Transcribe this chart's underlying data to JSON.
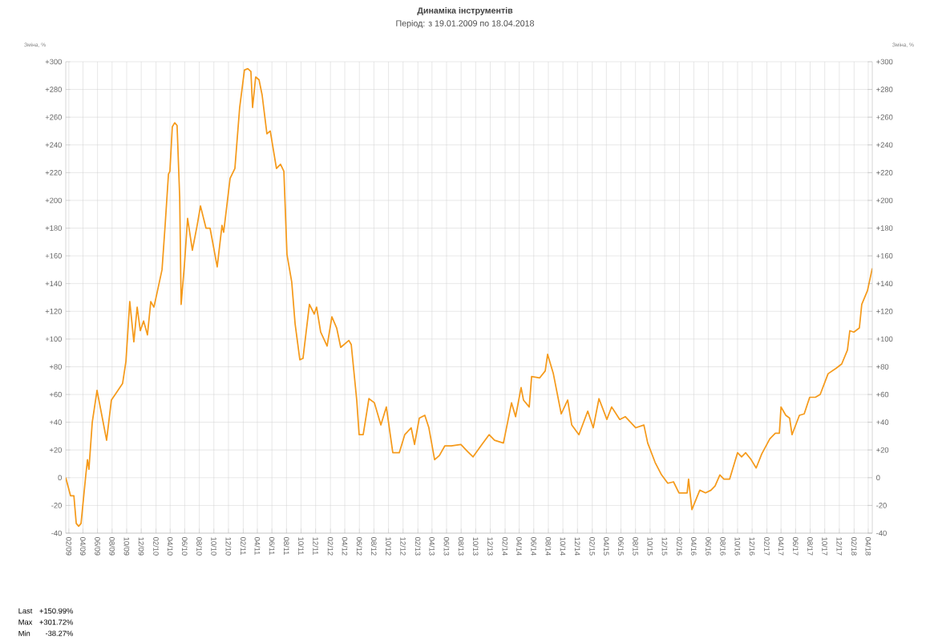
{
  "chart_data": {
    "type": "line",
    "title": "Динаміка інструментів",
    "subtitle": "Період: з 19.01.2009 по 18.04.2018",
    "ylabel": "Зміна, %",
    "y2label": "Зміна, %",
    "annotations": [
      "Last",
      "+150.99%",
      "Max",
      "+301.72%",
      "Min",
      "-38.27%"
    ],
    "x": [
      "2009-01-19",
      "2009-02-08",
      "2009-02-22",
      "2009-03-04",
      "2009-03-14",
      "2009-03-24",
      "2009-04-13",
      "2009-04-20",
      "2009-04-26",
      "2009-05-10",
      "2009-05-30",
      "2009-06-19",
      "2009-07-09",
      "2009-07-29",
      "2009-08-18",
      "2009-09-14",
      "2009-09-28",
      "2009-10-14",
      "2009-10-31",
      "2009-11-14",
      "2009-11-27",
      "2009-12-11",
      "2009-12-27",
      "2010-01-10",
      "2010-01-23",
      "2010-02-06",
      "2010-02-26",
      "2010-03-11",
      "2010-03-25",
      "2010-03-31",
      "2010-04-10",
      "2010-04-20",
      "2010-04-30",
      "2010-05-11",
      "2010-05-17",
      "2010-05-31",
      "2010-06-13",
      "2010-07-03",
      "2010-07-23",
      "2010-08-06",
      "2010-08-29",
      "2010-09-15",
      "2010-10-15",
      "2010-11-04",
      "2010-11-11",
      "2010-12-08",
      "2010-12-28",
      "2011-01-17",
      "2011-02-06",
      "2011-02-20",
      "2011-03-05",
      "2011-03-12",
      "2011-03-25",
      "2011-04-08",
      "2011-04-21",
      "2011-05-11",
      "2011-05-25",
      "2011-06-20",
      "2011-07-07",
      "2011-07-21",
      "2011-08-03",
      "2011-08-23",
      "2011-09-06",
      "2011-09-26",
      "2011-10-09",
      "2011-11-05",
      "2011-11-25",
      "2011-12-05",
      "2011-12-22",
      "2012-01-18",
      "2012-02-07",
      "2012-02-27",
      "2012-03-15",
      "2012-04-18",
      "2012-04-28",
      "2012-05-21",
      "2012-05-31",
      "2012-06-17",
      "2012-07-11",
      "2012-08-03",
      "2012-08-30",
      "2012-09-22",
      "2012-10-19",
      "2012-11-15",
      "2012-12-08",
      "2013-01-04",
      "2013-01-18",
      "2013-02-07",
      "2013-03-02",
      "2013-03-19",
      "2013-04-12",
      "2013-05-02",
      "2013-05-25",
      "2013-06-21",
      "2013-07-31",
      "2013-08-27",
      "2013-09-20",
      "2013-10-23",
      "2013-11-26",
      "2013-12-19",
      "2014-01-25",
      "2014-02-28",
      "2014-03-17",
      "2014-04-09",
      "2014-04-19",
      "2014-05-13",
      "2014-05-23",
      "2014-06-26",
      "2014-07-19",
      "2014-07-29",
      "2014-08-22",
      "2014-09-24",
      "2014-10-21",
      "2014-11-07",
      "2014-12-07",
      "2015-01-13",
      "2015-02-05",
      "2015-03-01",
      "2015-04-03",
      "2015-04-23",
      "2015-05-27",
      "2015-06-19",
      "2015-08-02",
      "2015-09-05",
      "2015-09-21",
      "2015-10-22",
      "2015-11-18",
      "2015-12-14",
      "2016-01-07",
      "2016-01-30",
      "2016-03-04",
      "2016-03-10",
      "2016-03-24",
      "2016-04-26",
      "2016-05-20",
      "2016-06-12",
      "2016-06-29",
      "2016-07-19",
      "2016-08-05",
      "2016-08-29",
      "2016-10-01",
      "2016-10-18",
      "2016-11-04",
      "2016-11-27",
      "2016-12-18",
      "2017-01-10",
      "2017-02-13",
      "2017-03-08",
      "2017-03-25",
      "2017-04-01",
      "2017-04-21",
      "2017-05-07",
      "2017-05-17",
      "2017-06-17",
      "2017-07-07",
      "2017-07-30",
      "2017-08-23",
      "2017-09-12",
      "2017-10-15",
      "2017-11-18",
      "2017-12-11",
      "2018-01-04",
      "2018-01-14",
      "2018-01-31",
      "2018-02-23",
      "2018-03-05",
      "2018-03-29",
      "2018-04-18"
    ],
    "series": [
      {
        "color": "#f59a1b",
        "values": [
          0,
          -13,
          -13,
          -33,
          -35,
          -33,
          2,
          13,
          6,
          40,
          63,
          45,
          27,
          56,
          61,
          68,
          84,
          127,
          98,
          123,
          106,
          113,
          103,
          127,
          123,
          134,
          150,
          182,
          219,
          221,
          253,
          256,
          254,
          202,
          125,
          154,
          187,
          164,
          182,
          196,
          180,
          180,
          152,
          182,
          177,
          216,
          223,
          267,
          294,
          295,
          293,
          267,
          289,
          287,
          276,
          248,
          250,
          223,
          226,
          221,
          161,
          141,
          111,
          85,
          86,
          125,
          118,
          123,
          105,
          95,
          116,
          108,
          94,
          99,
          96,
          56,
          31,
          31,
          57,
          54,
          38,
          51,
          18,
          18,
          31,
          36,
          24,
          43,
          45,
          36,
          13,
          16,
          23,
          23,
          24,
          19,
          15,
          23,
          31,
          27,
          25,
          54,
          44,
          65,
          56,
          51,
          73,
          72,
          77,
          89,
          75,
          46,
          56,
          38,
          31,
          48,
          36,
          57,
          42,
          51,
          42,
          44,
          36,
          38,
          25,
          11,
          2,
          -4,
          -3,
          -11,
          -11,
          -1,
          -23,
          -9,
          -11,
          -9,
          -6,
          2,
          -1,
          -1,
          18,
          15,
          18,
          13,
          7,
          17,
          28,
          32,
          32,
          51,
          45,
          43,
          31,
          45,
          46,
          58,
          58,
          60,
          75,
          79,
          82,
          92,
          106,
          105,
          108,
          125,
          135,
          151
        ]
      }
    ],
    "xlim": [
      "2009-01-19",
      "2018-04-18"
    ],
    "xticks": [
      {
        "value": "2009-02-01",
        "label": "02/09"
      },
      {
        "value": "2009-04-01",
        "label": "04/09"
      },
      {
        "value": "2009-06-01",
        "label": "06/09"
      },
      {
        "value": "2009-08-01",
        "label": "08/09"
      },
      {
        "value": "2009-10-01",
        "label": "10/09"
      },
      {
        "value": "2009-12-01",
        "label": "12/09"
      },
      {
        "value": "2010-02-01",
        "label": "02/10"
      },
      {
        "value": "2010-04-01",
        "label": "04/10"
      },
      {
        "value": "2010-06-01",
        "label": "06/10"
      },
      {
        "value": "2010-08-01",
        "label": "08/10"
      },
      {
        "value": "2010-10-01",
        "label": "10/10"
      },
      {
        "value": "2010-12-01",
        "label": "12/10"
      },
      {
        "value": "2011-02-01",
        "label": "02/11"
      },
      {
        "value": "2011-04-01",
        "label": "04/11"
      },
      {
        "value": "2011-06-01",
        "label": "06/11"
      },
      {
        "value": "2011-08-01",
        "label": "08/11"
      },
      {
        "value": "2011-10-01",
        "label": "10/11"
      },
      {
        "value": "2011-12-01",
        "label": "12/11"
      },
      {
        "value": "2012-02-01",
        "label": "02/12"
      },
      {
        "value": "2012-04-01",
        "label": "04/12"
      },
      {
        "value": "2012-06-01",
        "label": "06/12"
      },
      {
        "value": "2012-08-01",
        "label": "08/12"
      },
      {
        "value": "2012-10-01",
        "label": "10/12"
      },
      {
        "value": "2012-12-01",
        "label": "12/12"
      },
      {
        "value": "2013-02-01",
        "label": "02/13"
      },
      {
        "value": "2013-04-01",
        "label": "04/13"
      },
      {
        "value": "2013-06-01",
        "label": "06/13"
      },
      {
        "value": "2013-08-01",
        "label": "08/13"
      },
      {
        "value": "2013-10-01",
        "label": "10/13"
      },
      {
        "value": "2013-12-01",
        "label": "12/13"
      },
      {
        "value": "2014-02-01",
        "label": "02/14"
      },
      {
        "value": "2014-04-01",
        "label": "04/14"
      },
      {
        "value": "2014-06-01",
        "label": "06/14"
      },
      {
        "value": "2014-08-01",
        "label": "08/14"
      },
      {
        "value": "2014-10-01",
        "label": "10/14"
      },
      {
        "value": "2014-12-01",
        "label": "12/14"
      },
      {
        "value": "2015-02-01",
        "label": "02/15"
      },
      {
        "value": "2015-04-01",
        "label": "04/15"
      },
      {
        "value": "2015-06-01",
        "label": "06/15"
      },
      {
        "value": "2015-08-01",
        "label": "08/15"
      },
      {
        "value": "2015-10-01",
        "label": "10/15"
      },
      {
        "value": "2015-12-01",
        "label": "12/15"
      },
      {
        "value": "2016-02-01",
        "label": "02/16"
      },
      {
        "value": "2016-04-01",
        "label": "04/16"
      },
      {
        "value": "2016-06-01",
        "label": "06/16"
      },
      {
        "value": "2016-08-01",
        "label": "08/16"
      },
      {
        "value": "2016-10-01",
        "label": "10/16"
      },
      {
        "value": "2016-12-01",
        "label": "12/16"
      },
      {
        "value": "2017-02-01",
        "label": "02/17"
      },
      {
        "value": "2017-04-01",
        "label": "04/17"
      },
      {
        "value": "2017-06-01",
        "label": "06/17"
      },
      {
        "value": "2017-08-01",
        "label": "08/17"
      },
      {
        "value": "2017-10-01",
        "label": "10/17"
      },
      {
        "value": "2017-12-01",
        "label": "12/17"
      },
      {
        "value": "2018-02-01",
        "label": "02/18"
      },
      {
        "value": "2018-04-01",
        "label": "04/18"
      }
    ],
    "ylim": [
      -40,
      300
    ],
    "yticks": [
      {
        "value": 300,
        "label": "+300"
      },
      {
        "value": 280,
        "label": "+280"
      },
      {
        "value": 260,
        "label": "+260"
      },
      {
        "value": 240,
        "label": "+240"
      },
      {
        "value": 220,
        "label": "+220"
      },
      {
        "value": 200,
        "label": "+200"
      },
      {
        "value": 180,
        "label": "+180"
      },
      {
        "value": 160,
        "label": "+160"
      },
      {
        "value": 140,
        "label": "+140"
      },
      {
        "value": 120,
        "label": "+120"
      },
      {
        "value": 100,
        "label": "+100"
      },
      {
        "value": 80,
        "label": "+80"
      },
      {
        "value": 60,
        "label": "+60"
      },
      {
        "value": 40,
        "label": "+40"
      },
      {
        "value": 20,
        "label": "+20"
      },
      0,
      -20,
      -40
    ],
    "y2lim": [
      -40,
      300
    ],
    "y2ticks": [
      {
        "value": 300,
        "label": "+300"
      },
      {
        "value": 280,
        "label": "+280"
      },
      {
        "value": 260,
        "label": "+260"
      },
      {
        "value": 240,
        "label": "+240"
      },
      {
        "value": 220,
        "label": "+220"
      },
      {
        "value": 200,
        "label": "+200"
      },
      {
        "value": 180,
        "label": "+180"
      },
      {
        "value": 160,
        "label": "+160"
      },
      {
        "value": 140,
        "label": "+140"
      },
      {
        "value": 120,
        "label": "+120"
      },
      {
        "value": 100,
        "label": "+100"
      },
      {
        "value": 80,
        "label": "+80"
      },
      {
        "value": 60,
        "label": "+60"
      },
      {
        "value": 40,
        "label": "+40"
      },
      {
        "value": 20,
        "label": "+20"
      },
      0,
      -20,
      -40
    ],
    "grid": true
  }
}
